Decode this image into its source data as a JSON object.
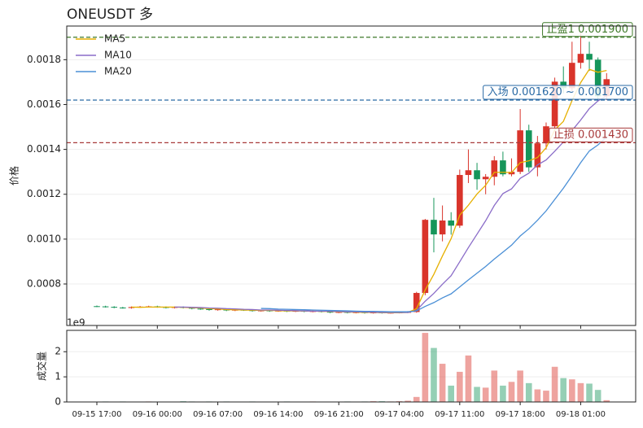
{
  "chart_data": {
    "type": "candlestick",
    "title": "ONEUSDT  多",
    "ylabel": "价格",
    "categories": [
      "09-15 17:00",
      null,
      null,
      null,
      null,
      null,
      null,
      "09-16 00:00",
      null,
      null,
      null,
      null,
      null,
      null,
      "09-16 07:00",
      null,
      null,
      null,
      null,
      null,
      null,
      "09-16 14:00",
      null,
      null,
      null,
      null,
      null,
      null,
      "09-16 21:00",
      null,
      null,
      null,
      null,
      null,
      null,
      "09-17 04:00",
      null,
      null,
      null,
      null,
      null,
      null,
      "09-17 11:00",
      null,
      null,
      null,
      null,
      null,
      null,
      "09-17 18:00",
      null,
      null,
      null,
      null,
      null,
      null,
      "09-18 01:00",
      null,
      null,
      null
    ],
    "ohlc": [
      [
        0.000701,
        0.000704,
        0.000697,
        0.0007
      ],
      [
        0.0007,
        0.000703,
        0.000695,
        0.000698
      ],
      [
        0.000698,
        0.000701,
        0.000692,
        0.000695
      ],
      [
        0.000695,
        0.000698,
        0.00069,
        0.000693
      ],
      [
        0.000693,
        0.0007,
        0.00069,
        0.000697
      ],
      [
        0.000697,
        0.000702,
        0.000694,
        0.000699
      ],
      [
        0.000699,
        0.000703,
        0.000696,
        0.0007
      ],
      [
        0.0007,
        0.000703,
        0.000694,
        0.000697
      ],
      [
        0.000697,
        0.0007,
        0.000691,
        0.000694
      ],
      [
        0.000694,
        0.0007,
        0.000691,
        0.000697
      ],
      [
        0.000697,
        0.0007,
        0.000691,
        0.000694
      ],
      [
        0.000694,
        0.000697,
        0.000687,
        0.00069
      ],
      [
        0.00069,
        0.000693,
        0.000685,
        0.000688
      ],
      [
        0.000688,
        0.000691,
        0.000681,
        0.000684
      ],
      [
        0.000684,
        0.00069,
        0.000681,
        0.000687
      ],
      [
        0.000687,
        0.00069,
        0.000679,
        0.000682
      ],
      [
        0.000682,
        0.000688,
        0.000679,
        0.000685
      ],
      [
        0.000685,
        0.000688,
        0.00068,
        0.000683
      ],
      [
        0.000683,
        0.000686,
        0.000677,
        0.00068
      ],
      [
        0.00068,
        0.000685,
        0.000677,
        0.000682
      ],
      [
        0.000682,
        0.000685,
        0.000676,
        0.000679
      ],
      [
        0.000679,
        0.000684,
        0.000676,
        0.000681
      ],
      [
        0.000681,
        0.000684,
        0.000675,
        0.000678
      ],
      [
        0.000678,
        0.000683,
        0.000675,
        0.00068
      ],
      [
        0.00068,
        0.000683,
        0.000674,
        0.000677
      ],
      [
        0.000677,
        0.000682,
        0.000674,
        0.000679
      ],
      [
        0.000679,
        0.000682,
        0.000673,
        0.000676
      ],
      [
        0.000676,
        0.000679,
        0.00067,
        0.000673
      ],
      [
        0.000673,
        0.000678,
        0.00067,
        0.000675
      ],
      [
        0.000675,
        0.000678,
        0.000669,
        0.000672
      ],
      [
        0.000672,
        0.000677,
        0.000669,
        0.000674
      ],
      [
        0.000674,
        0.000677,
        0.000668,
        0.000671
      ],
      [
        0.000671,
        0.000676,
        0.000668,
        0.000673
      ],
      [
        0.000673,
        0.000676,
        0.000668,
        0.000671
      ],
      [
        0.000671,
        0.000675,
        0.000668,
        0.000672
      ],
      [
        0.000672,
        0.000676,
        0.000669,
        0.000673
      ],
      [
        0.000673,
        0.000679,
        0.00067,
        0.000675
      ],
      [
        0.000675,
        0.000765,
        0.000672,
        0.00076
      ],
      [
        0.00076,
        0.00109,
        0.00075,
        0.001086
      ],
      [
        0.001086,
        0.001184,
        0.000941,
        0.001021
      ],
      [
        0.001021,
        0.00115,
        0.00099,
        0.001083
      ],
      [
        0.001083,
        0.00112,
        0.00102,
        0.00106
      ],
      [
        0.00106,
        0.00131,
        0.00105,
        0.001286
      ],
      [
        0.001286,
        0.0014,
        0.00125,
        0.001307
      ],
      [
        0.001307,
        0.00134,
        0.00122,
        0.001267
      ],
      [
        0.001267,
        0.00129,
        0.0012,
        0.001278
      ],
      [
        0.001278,
        0.00137,
        0.00124,
        0.001351
      ],
      [
        0.001351,
        0.00139,
        0.00128,
        0.001289
      ],
      [
        0.001289,
        0.00136,
        0.00128,
        0.0013
      ],
      [
        0.0013,
        0.00158,
        0.00129,
        0.001485
      ],
      [
        0.001485,
        0.00151,
        0.0013,
        0.00132
      ],
      [
        0.00132,
        0.00146,
        0.00128,
        0.001427
      ],
      [
        0.001427,
        0.00152,
        0.0014,
        0.001503
      ],
      [
        0.001503,
        0.00172,
        0.00148,
        0.001702
      ],
      [
        0.001702,
        0.00177,
        0.00165,
        0.001673
      ],
      [
        0.001673,
        0.00188,
        0.00166,
        0.001786
      ],
      [
        0.001786,
        0.00192,
        0.00176,
        0.001826
      ],
      [
        0.001826,
        0.00188,
        0.00175,
        0.0018
      ],
      [
        0.0018,
        0.00181,
        0.00162,
        0.001637
      ],
      [
        0.001637,
        0.00174,
        0.00162,
        0.001713
      ]
    ],
    "up_color": "#d9342b",
    "down_color": "#15955a",
    "series": [
      {
        "name": "MA5",
        "color": "#e6b000",
        "values": [
          null,
          null,
          null,
          null,
          0.000697,
          0.000696,
          0.000697,
          0.000697,
          0.000697,
          0.000697,
          0.000696,
          0.000694,
          0.000693,
          0.00069,
          0.000689,
          0.000686,
          0.000685,
          0.000684,
          0.000683,
          0.000682,
          0.000682,
          0.000681,
          0.00068,
          0.00068,
          0.000679,
          0.000679,
          0.000678,
          0.000677,
          0.000676,
          0.000675,
          0.000674,
          0.000673,
          0.000673,
          0.000672,
          0.000672,
          0.000672,
          0.000673,
          0.00069,
          0.000773,
          0.000843,
          0.000925,
          0.001002,
          0.001107,
          0.001151,
          0.001201,
          0.00124,
          0.001298,
          0.001298,
          0.001297,
          0.001341,
          0.001349,
          0.001364,
          0.001407,
          0.001487,
          0.001525,
          0.001618,
          0.001698,
          0.001757,
          0.001744,
          0.001752
        ]
      },
      {
        "name": "MA10",
        "color": "#8a6cc8",
        "values": [
          null,
          null,
          null,
          null,
          null,
          null,
          null,
          null,
          null,
          0.000697,
          0.000697,
          0.000696,
          0.000695,
          0.000693,
          0.000692,
          0.00069,
          0.000689,
          0.000687,
          0.000686,
          0.000684,
          0.000684,
          0.000683,
          0.000682,
          0.000681,
          0.00068,
          0.000679,
          0.000679,
          0.000678,
          0.000677,
          0.000676,
          0.000676,
          0.000675,
          0.000674,
          0.000673,
          0.000673,
          0.000673,
          0.000673,
          0.000682,
          0.000723,
          0.000758,
          0.000799,
          0.000837,
          0.000899,
          0.000962,
          0.001022,
          0.001082,
          0.00115,
          0.001203,
          0.001224,
          0.001271,
          0.001294,
          0.001331,
          0.001353,
          0.001392,
          0.001433,
          0.001484,
          0.001531,
          0.001582,
          0.001616,
          0.001639
        ]
      },
      {
        "name": "MA20",
        "color": "#4a8fd6",
        "values": [
          null,
          null,
          null,
          null,
          null,
          null,
          null,
          null,
          null,
          null,
          null,
          null,
          null,
          null,
          null,
          null,
          null,
          null,
          null,
          0.000691,
          0.00069,
          0.000688,
          0.000687,
          0.000686,
          0.000685,
          0.000684,
          0.000683,
          0.000682,
          0.000681,
          0.00068,
          0.000679,
          0.000678,
          0.000678,
          0.000677,
          0.000676,
          0.000676,
          0.000676,
          0.00068,
          0.0007,
          0.000717,
          0.000738,
          0.000756,
          0.000787,
          0.000818,
          0.000848,
          0.000878,
          0.000911,
          0.000942,
          0.000973,
          0.001014,
          0.001046,
          0.001084,
          0.001126,
          0.001177,
          0.001227,
          0.001283,
          0.001341,
          0.001393,
          0.00142,
          0.001455
        ]
      }
    ],
    "levels": [
      {
        "label": "止盈1 0.001900",
        "value": 0.0019,
        "color": "#3f7a2a"
      },
      {
        "label": "入场 0.001620 ~ 0.001700",
        "value": 0.00162,
        "color": "#2a6aa5"
      },
      {
        "label": "止损 0.001430",
        "value": 0.00143,
        "color": "#a83a3a"
      }
    ],
    "ylim": [
      0.000615,
      0.00195
    ],
    "yticks": [
      0.0008,
      {
        "value": 0.001,
        "label": "0.0010"
      },
      0.0012,
      0.0014,
      0.0016,
      0.0018
    ],
    "grid": true,
    "legend": "upper left",
    "volume": {
      "ylabel": "成交量",
      "offset_label": "1e9",
      "ylim": [
        0,
        2.85
      ],
      "yticks": [
        0,
        1,
        2
      ],
      "values": [
        0.01,
        0.02,
        0.01,
        0.02,
        0.01,
        0.01,
        0.02,
        0.01,
        0.01,
        0.01,
        0.03,
        0.02,
        0.01,
        0.02,
        0.01,
        0.02,
        0.01,
        0.01,
        0.02,
        0.01,
        0.01,
        0.01,
        0.02,
        0.01,
        0.01,
        0.02,
        0.01,
        0.01,
        0.01,
        0.02,
        0.01,
        0.02,
        0.03,
        0.03,
        0.02,
        0.03,
        0.05,
        0.2,
        2.75,
        2.15,
        1.52,
        0.65,
        1.2,
        1.85,
        0.6,
        0.57,
        1.25,
        0.65,
        0.8,
        1.25,
        0.75,
        0.5,
        0.45,
        1.4,
        0.95,
        0.9,
        0.75,
        0.73,
        0.48,
        0.07
      ]
    }
  }
}
